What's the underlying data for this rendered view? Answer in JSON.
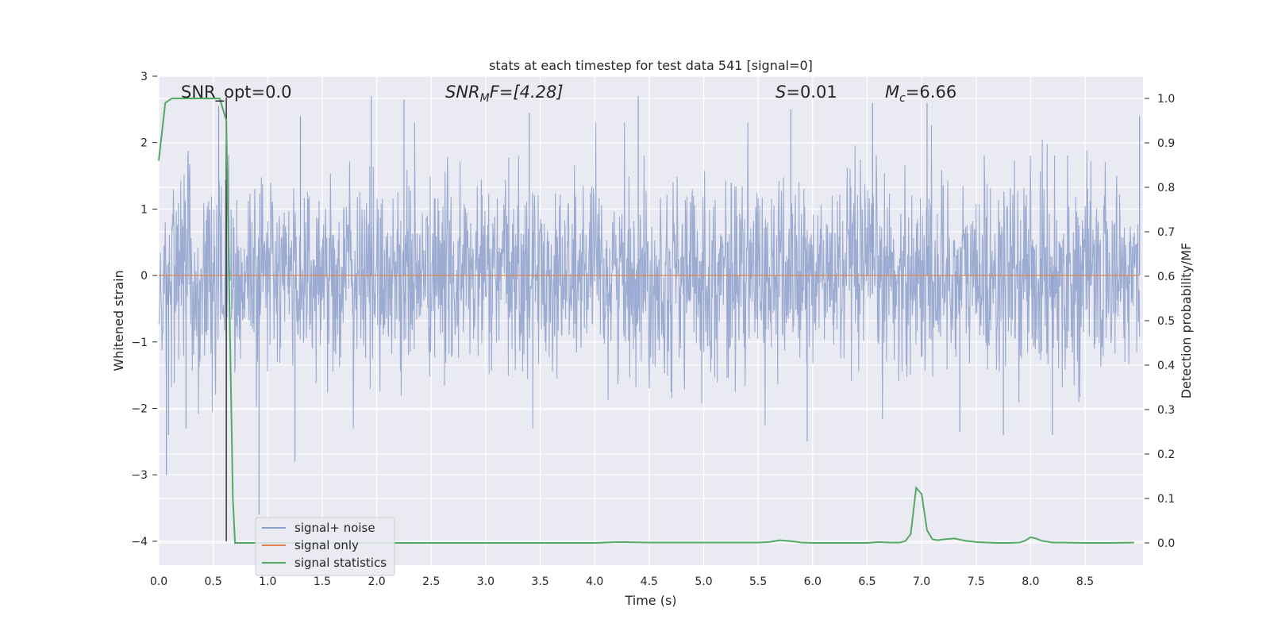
{
  "chart_data": {
    "type": "line",
    "title": "stats at each timestep for test data 541 [signal=0]",
    "xlabel": "Time (s)",
    "ylabel": "Whitened strain",
    "y2label": "Detection probability/MF",
    "xlim": [
      0.0,
      9.0
    ],
    "ylim": [
      -4.33,
      3.0
    ],
    "y2lim": [
      -0.048,
      1.048
    ],
    "xticks": [
      "0.0",
      "0.5",
      "1.0",
      "1.5",
      "2.0",
      "2.5",
      "3.0",
      "3.5",
      "4.0",
      "4.5",
      "5.0",
      "5.5",
      "6.0",
      "6.5",
      "7.0",
      "7.5",
      "8.0",
      "8.5"
    ],
    "xtick_values": [
      0.0,
      0.5,
      1.0,
      1.5,
      2.0,
      2.5,
      3.0,
      3.5,
      4.0,
      4.5,
      5.0,
      5.5,
      6.0,
      6.5,
      7.0,
      7.5,
      8.0,
      8.5
    ],
    "yticks": [
      "3",
      "2",
      "1",
      "0",
      "−1",
      "−2",
      "−3",
      "−4"
    ],
    "ytick_values": [
      3,
      2,
      1,
      0,
      -1,
      -2,
      -3,
      -4
    ],
    "y2ticks": [
      "1.0",
      "0.9",
      "0.8",
      "0.7",
      "0.6",
      "0.5",
      "0.4",
      "0.3",
      "0.2",
      "0.1",
      "0.0"
    ],
    "y2tick_values": [
      1.0,
      0.9,
      0.8,
      0.7,
      0.6,
      0.5,
      0.4,
      0.3,
      0.2,
      0.1,
      0.0
    ],
    "grid": true,
    "legend_position": "lower-left",
    "annotations": {
      "snr_opt": "SNR_opt=0.0",
      "snr_mf_prefix": "SNR",
      "snr_mf_sub": "M",
      "snr_mf_suffix": "F=[4.28]",
      "s_var": "S",
      "s_value": "=0.01",
      "mc_var": "M",
      "mc_sub": "c",
      "mc_value": "=6.66"
    },
    "vertical_marker_x": 0.62,
    "series": [
      {
        "name": "signal+ noise",
        "axis": "left",
        "color": "#8da0cb",
        "kind": "noise",
        "typical_envelope": [
          -1.5,
          1.5
        ],
        "peak_values": [
          {
            "x": 0.07,
            "y": -3.0
          },
          {
            "x": 0.09,
            "y": -2.4
          },
          {
            "x": 0.25,
            "y": -2.3
          },
          {
            "x": 0.55,
            "y": 2.55
          },
          {
            "x": 0.92,
            "y": -3.6
          },
          {
            "x": 1.25,
            "y": -2.8
          },
          {
            "x": 1.3,
            "y": 2.4
          },
          {
            "x": 1.95,
            "y": 2.7
          },
          {
            "x": 2.25,
            "y": 2.65
          },
          {
            "x": 3.4,
            "y": 2.45
          },
          {
            "x": 4.4,
            "y": 2.7
          },
          {
            "x": 5.8,
            "y": 2.5
          },
          {
            "x": 5.95,
            "y": -2.5
          },
          {
            "x": 6.55,
            "y": 2.6
          },
          {
            "x": 7.05,
            "y": 2.6
          },
          {
            "x": 7.35,
            "y": -2.35
          },
          {
            "x": 7.75,
            "y": -2.4
          },
          {
            "x": 8.2,
            "y": -2.4
          },
          {
            "x": 9.0,
            "y": 2.4
          }
        ]
      },
      {
        "name": "signal only",
        "axis": "left",
        "color": "#dd8452",
        "x": [
          0.0,
          9.0
        ],
        "y": [
          0.0,
          0.0
        ]
      },
      {
        "name": "signal statistics",
        "axis": "right",
        "color": "#55a868",
        "x": [
          0.0,
          0.06,
          0.12,
          0.2,
          0.3,
          0.4,
          0.5,
          0.56,
          0.62,
          0.68,
          0.7,
          0.8,
          1.0,
          1.5,
          2.0,
          2.5,
          3.0,
          3.5,
          4.0,
          4.2,
          4.5,
          5.0,
          5.5,
          5.6,
          5.7,
          5.8,
          5.9,
          6.0,
          6.5,
          6.6,
          6.7,
          6.8,
          6.85,
          6.9,
          6.95,
          7.0,
          7.05,
          7.1,
          7.15,
          7.2,
          7.3,
          7.4,
          7.5,
          7.6,
          7.7,
          7.8,
          7.9,
          7.95,
          8.0,
          8.05,
          8.1,
          8.2,
          8.3,
          8.5,
          8.7,
          8.95
        ],
        "y": [
          0.86,
          0.99,
          1.0,
          1.0,
          1.0,
          1.0,
          1.0,
          1.0,
          0.95,
          0.1,
          0.0,
          0.0,
          0.0,
          0.0,
          0.0,
          0.0,
          0.0,
          0.0,
          0.0,
          0.002,
          0.001,
          0.001,
          0.001,
          0.002,
          0.006,
          0.004,
          0.001,
          0.0,
          0.0,
          0.002,
          0.001,
          0.001,
          0.004,
          0.02,
          0.124,
          0.11,
          0.028,
          0.008,
          0.006,
          0.008,
          0.01,
          0.005,
          0.002,
          0.001,
          0.0,
          0.0,
          0.001,
          0.005,
          0.013,
          0.01,
          0.005,
          0.001,
          0.001,
          0.0,
          0.0,
          0.001
        ]
      }
    ]
  }
}
